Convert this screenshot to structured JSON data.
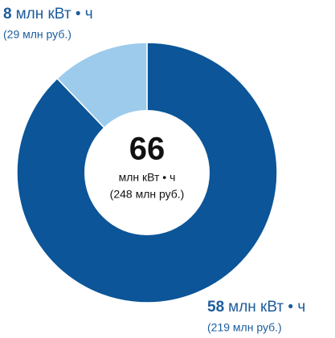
{
  "chart_data": {
    "type": "pie",
    "donut": true,
    "series": [
      {
        "values": [
          58,
          8
        ],
        "colors": [
          "#0b5598",
          "#9dcbeb"
        ]
      }
    ],
    "unit": "млн кВт • ч",
    "sublabels": [
      "(219 млн руб.)",
      "(29 млн руб.)"
    ],
    "total": 66,
    "total_sublabel": "(248 млн руб.)"
  }
}
